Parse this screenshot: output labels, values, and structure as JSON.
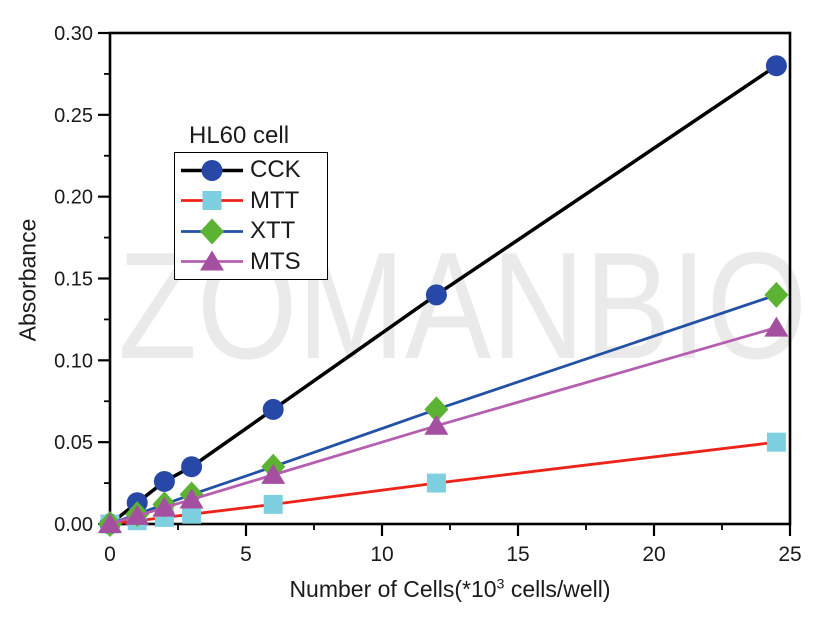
{
  "figure": {
    "watermark": "ZOMANBIO",
    "background": "#ffffff"
  },
  "chart_data": {
    "type": "line",
    "title": "",
    "legend_title": "HL60 cell",
    "legend_position": "upper-left-inside",
    "grid": false,
    "xlabel": "Number of Cells(*10³ cells/well)",
    "xlabel_parts": {
      "pre": "Number of Cells(*10",
      "sup": "3",
      "post": " cells/well)"
    },
    "ylabel": "Absorbance",
    "xlim": [
      0,
      25
    ],
    "ylim": [
      0,
      0.3
    ],
    "x_major_ticks": [
      0,
      5,
      10,
      15,
      20,
      25
    ],
    "x_tick_labels": [
      "0",
      "5",
      "10",
      "15",
      "20",
      "25"
    ],
    "x_minor_ticks": [
      2.5,
      7.5,
      12.5,
      17.5,
      22.5
    ],
    "y_major_ticks": [
      0.0,
      0.05,
      0.1,
      0.15,
      0.2,
      0.25,
      0.3
    ],
    "y_tick_labels": [
      "0.00",
      "0.05",
      "0.10",
      "0.15",
      "0.20",
      "0.25",
      "0.30"
    ],
    "y_minor_ticks": [
      0.025,
      0.075,
      0.125,
      0.175,
      0.225,
      0.275
    ],
    "x": [
      0,
      1,
      2,
      3,
      6,
      12,
      24.5
    ],
    "series": [
      {
        "name": "CCK",
        "marker": "circle",
        "marker_color": "#2748a6",
        "line_color": "#000000",
        "line_width": 3.5,
        "values": [
          0,
          0.013,
          0.026,
          0.035,
          0.07,
          0.14,
          0.28
        ]
      },
      {
        "name": "MTT",
        "marker": "square",
        "marker_color": "#7ed0e0",
        "line_color": "#ec2318",
        "line_width": 2.8,
        "values": [
          0,
          0.002,
          0.004,
          0.006,
          0.012,
          0.025,
          0.05
        ]
      },
      {
        "name": "XTT",
        "marker": "diamond",
        "marker_color": "#5cb232",
        "line_color": "#2351a5",
        "line_width": 2.8,
        "values": [
          0,
          0.006,
          0.012,
          0.018,
          0.035,
          0.07,
          0.14
        ]
      },
      {
        "name": "MTS",
        "marker": "triangle",
        "marker_color": "#a44f9f",
        "line_color": "#b55fb0",
        "line_width": 2.8,
        "values": [
          0,
          0.005,
          0.01,
          0.015,
          0.03,
          0.06,
          0.12
        ]
      }
    ],
    "axis_color": "#000000",
    "tick_label_color": "#1a1a1a"
  }
}
